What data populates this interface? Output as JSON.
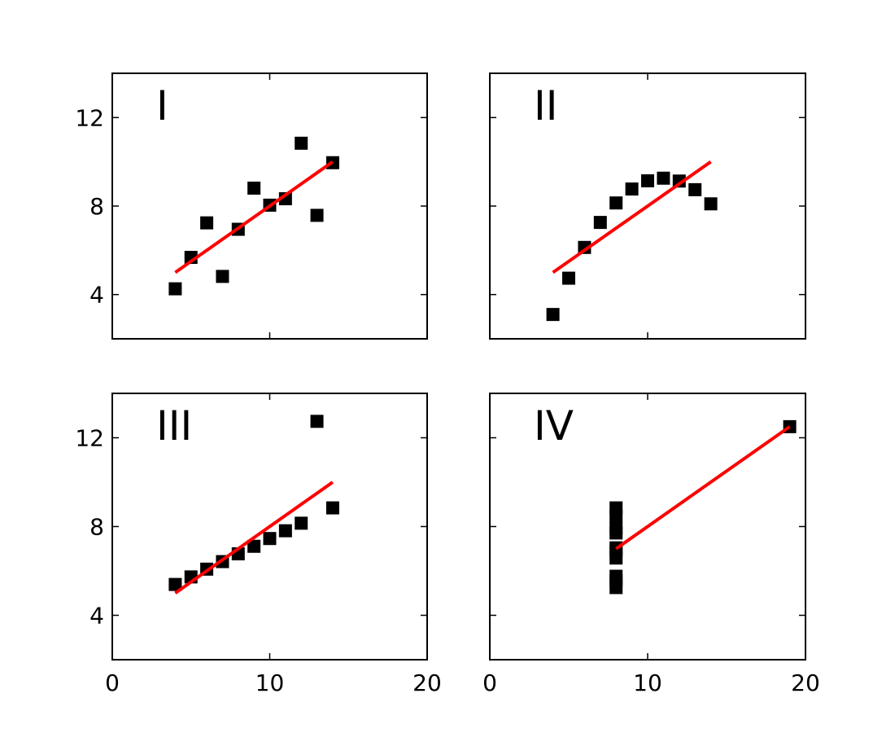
{
  "figure": {
    "layout": "2x2 grid, shared x axis per column, shared y axis per row"
  },
  "chart_data": [
    {
      "type": "scatter",
      "label": "I",
      "xlim": [
        0,
        20
      ],
      "ylim": [
        2,
        14
      ],
      "xticks": [
        "0",
        "10",
        "20"
      ],
      "yticks": [
        "4",
        "8",
        "12"
      ],
      "show_xtick_labels": false,
      "show_ytick_labels": true,
      "marker": "square",
      "marker_color": "#000000",
      "points": [
        [
          10,
          8.04
        ],
        [
          8,
          6.95
        ],
        [
          13,
          7.58
        ],
        [
          9,
          8.81
        ],
        [
          11,
          8.33
        ],
        [
          14,
          9.96
        ],
        [
          6,
          7.24
        ],
        [
          4,
          4.26
        ],
        [
          12,
          10.84
        ],
        [
          7,
          4.82
        ],
        [
          5,
          5.68
        ]
      ],
      "fit_line": {
        "color": "#ff0000",
        "x": [
          4,
          14
        ],
        "y": [
          5.0,
          10.0
        ]
      }
    },
    {
      "type": "scatter",
      "label": "II",
      "xlim": [
        0,
        20
      ],
      "ylim": [
        2,
        14
      ],
      "xticks": [
        "0",
        "10",
        "20"
      ],
      "yticks": [
        "4",
        "8",
        "12"
      ],
      "show_xtick_labels": false,
      "show_ytick_labels": false,
      "marker": "square",
      "marker_color": "#000000",
      "points": [
        [
          10,
          9.14
        ],
        [
          8,
          8.14
        ],
        [
          13,
          8.74
        ],
        [
          9,
          8.77
        ],
        [
          11,
          9.26
        ],
        [
          14,
          8.1
        ],
        [
          6,
          6.13
        ],
        [
          4,
          3.1
        ],
        [
          12,
          9.13
        ],
        [
          7,
          7.26
        ],
        [
          5,
          4.74
        ]
      ],
      "fit_line": {
        "color": "#ff0000",
        "x": [
          4,
          14
        ],
        "y": [
          5.0,
          10.0
        ]
      }
    },
    {
      "type": "scatter",
      "label": "III",
      "xlim": [
        0,
        20
      ],
      "ylim": [
        2,
        14
      ],
      "xticks": [
        "0",
        "10",
        "20"
      ],
      "yticks": [
        "4",
        "8",
        "12"
      ],
      "show_xtick_labels": true,
      "show_ytick_labels": true,
      "marker": "square",
      "marker_color": "#000000",
      "points": [
        [
          10,
          7.46
        ],
        [
          8,
          6.77
        ],
        [
          13,
          12.74
        ],
        [
          9,
          7.11
        ],
        [
          11,
          7.81
        ],
        [
          14,
          8.84
        ],
        [
          6,
          6.08
        ],
        [
          4,
          5.39
        ],
        [
          12,
          8.15
        ],
        [
          7,
          6.42
        ],
        [
          5,
          5.73
        ]
      ],
      "fit_line": {
        "color": "#ff0000",
        "x": [
          4,
          14
        ],
        "y": [
          5.0,
          10.0
        ]
      }
    },
    {
      "type": "scatter",
      "label": "IV",
      "xlim": [
        0,
        20
      ],
      "ylim": [
        2,
        14
      ],
      "xticks": [
        "0",
        "10",
        "20"
      ],
      "yticks": [
        "4",
        "8",
        "12"
      ],
      "show_xtick_labels": true,
      "show_ytick_labels": false,
      "marker": "square",
      "marker_color": "#000000",
      "points": [
        [
          8,
          6.58
        ],
        [
          8,
          5.76
        ],
        [
          8,
          7.71
        ],
        [
          8,
          8.84
        ],
        [
          8,
          8.47
        ],
        [
          8,
          7.04
        ],
        [
          8,
          5.25
        ],
        [
          19,
          12.5
        ],
        [
          8,
          5.56
        ],
        [
          8,
          7.91
        ],
        [
          8,
          6.89
        ]
      ],
      "fit_line": {
        "color": "#ff0000",
        "x": [
          8,
          19
        ],
        "y": [
          7.0,
          12.5
        ]
      }
    }
  ]
}
